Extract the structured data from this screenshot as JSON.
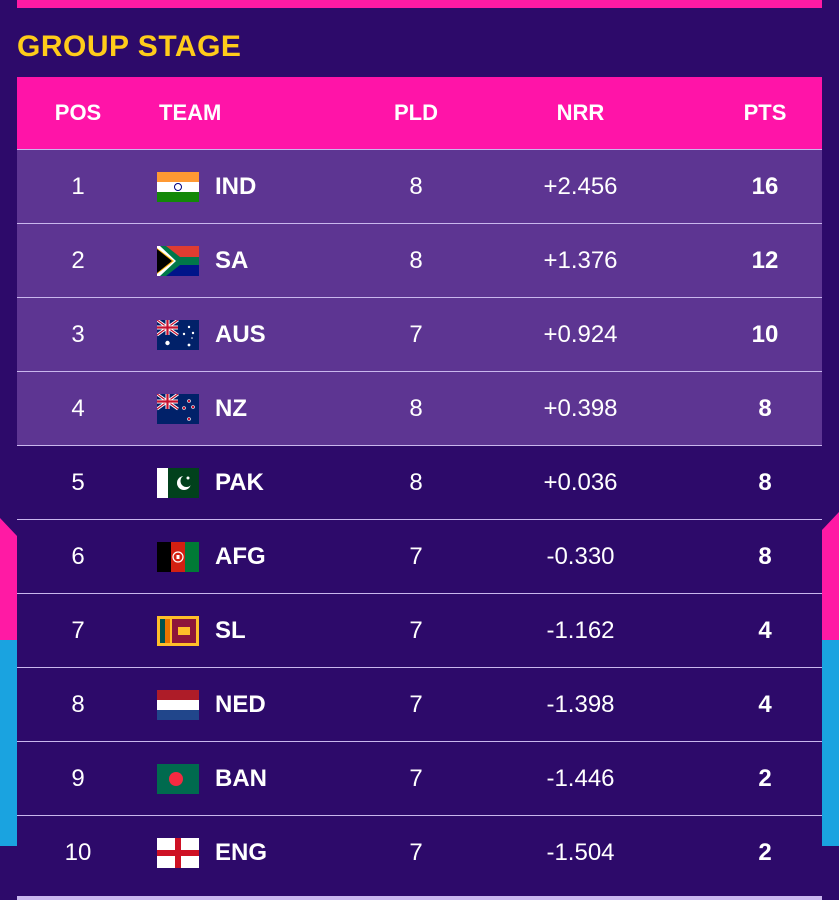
{
  "stage_title": "GROUP STAGE",
  "headers": {
    "pos": "POS",
    "team": "TEAM",
    "pld": "PLD",
    "nrr": "NRR",
    "pts": "PTS"
  },
  "colors": {
    "header_bg": "#ff14a8",
    "qualified_row": "#5d3592",
    "row_bg": "#2d0a6a",
    "title": "#ffcc1a"
  },
  "rows": [
    {
      "pos": "1",
      "team": "IND",
      "flag": "india-flag",
      "pld": "8",
      "nrr": "+2.456",
      "pts": "16"
    },
    {
      "pos": "2",
      "team": "SA",
      "flag": "south-africa-flag",
      "pld": "8",
      "nrr": "+1.376",
      "pts": "12"
    },
    {
      "pos": "3",
      "team": "AUS",
      "flag": "australia-flag",
      "pld": "7",
      "nrr": "+0.924",
      "pts": "10"
    },
    {
      "pos": "4",
      "team": "NZ",
      "flag": "new-zealand-flag",
      "pld": "8",
      "nrr": "+0.398",
      "pts": "8"
    },
    {
      "pos": "5",
      "team": "PAK",
      "flag": "pakistan-flag",
      "pld": "8",
      "nrr": "+0.036",
      "pts": "8"
    },
    {
      "pos": "6",
      "team": "AFG",
      "flag": "afghanistan-flag",
      "pld": "7",
      "nrr": "-0.330",
      "pts": "8"
    },
    {
      "pos": "7",
      "team": "SL",
      "flag": "sri-lanka-flag",
      "pld": "7",
      "nrr": "-1.162",
      "pts": "4"
    },
    {
      "pos": "8",
      "team": "NED",
      "flag": "netherlands-flag",
      "pld": "7",
      "nrr": "-1.398",
      "pts": "4"
    },
    {
      "pos": "9",
      "team": "BAN",
      "flag": "bangladesh-flag",
      "pld": "7",
      "nrr": "-1.446",
      "pts": "2"
    },
    {
      "pos": "10",
      "team": "ENG",
      "flag": "england-flag",
      "pld": "7",
      "nrr": "-1.504",
      "pts": "2"
    }
  ]
}
